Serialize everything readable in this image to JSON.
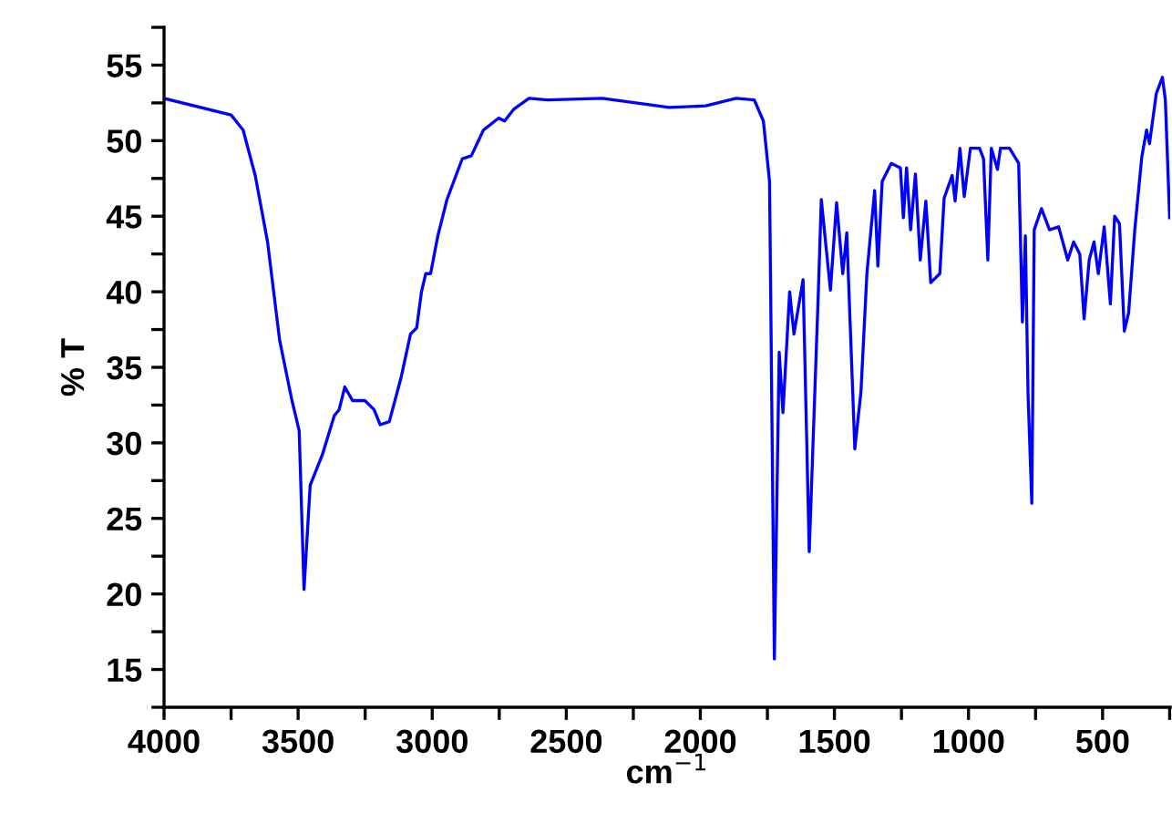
{
  "chart_data": {
    "type": "line",
    "xlabel": "cm$^{−1}$",
    "ylabel": "% T",
    "xlim": [
      4000,
      248
    ],
    "ylim": [
      12.5,
      57.5
    ],
    "xticks": [
      4000,
      {
        "value": 3750,
        "label": null
      },
      3500,
      {
        "value": 3250,
        "label": null
      },
      3000,
      {
        "value": 2750,
        "label": null
      },
      2500,
      {
        "value": 2250,
        "label": null
      },
      2000,
      {
        "value": 1750,
        "label": null
      },
      1500,
      {
        "value": 1250,
        "label": null
      },
      1000,
      {
        "value": 750,
        "label": null
      },
      500,
      {
        "value": 250,
        "label": null
      }
    ],
    "yticks": [
      {
        "value": 12.5,
        "label": null
      },
      15,
      {
        "value": 17.5,
        "label": null
      },
      20,
      {
        "value": 22.5,
        "label": null
      },
      25,
      {
        "value": 27.5,
        "label": null
      },
      30,
      {
        "value": 32.5,
        "label": null
      },
      35,
      {
        "value": 37.5,
        "label": null
      },
      40,
      {
        "value": 42.5,
        "label": null
      },
      45,
      {
        "value": 47.5,
        "label": null
      },
      50,
      {
        "value": 52.5,
        "label": null
      },
      55,
      {
        "value": 57.5,
        "label": null
      }
    ],
    "grid": false,
    "legend": false,
    "marker": "none",
    "line_style": "solid",
    "series": [
      {
        "color": "#0000ff",
        "x": [
          4000,
          3750,
          3705,
          3660,
          3614,
          3569,
          3523,
          3496,
          3478,
          3455,
          3410,
          3365,
          3347,
          3326,
          3297,
          3251,
          3217,
          3194,
          3160,
          3115,
          3081,
          3058,
          3040,
          3024,
          3006,
          2979,
          2945,
          2888,
          2854,
          2809,
          2752,
          2730,
          2695,
          2639,
          2570,
          2366,
          2116,
          1980,
          1867,
          1799,
          1765,
          1742,
          1724,
          1706,
          1692,
          1667,
          1651,
          1617,
          1594,
          1560,
          1549,
          1515,
          1492,
          1469,
          1454,
          1424,
          1401,
          1379,
          1350,
          1338,
          1322,
          1288,
          1254,
          1243,
          1231,
          1216,
          1198,
          1180,
          1159,
          1141,
          1107,
          1091,
          1061,
          1050,
          1032,
          1016,
          993,
          959,
          944,
          928,
          915,
          892,
          881,
          847,
          813,
          799,
          788,
          778,
          764,
          755,
          728,
          698,
          664,
          630,
          608,
          585,
          569,
          550,
          532,
          516,
          494,
          471,
          455,
          437,
          419,
          403,
          380,
          354,
          336,
          325,
          300,
          277,
          266,
          250
        ],
        "values": [
          52.8,
          51.7,
          50.7,
          47.7,
          43.3,
          36.8,
          32.8,
          30.8,
          20.3,
          27.2,
          29.2,
          31.8,
          32.2,
          33.7,
          32.8,
          32.8,
          32.2,
          31.2,
          31.4,
          34.4,
          37.2,
          37.6,
          40.0,
          41.2,
          41.2,
          43.7,
          46.1,
          48.8,
          49.0,
          50.7,
          51.5,
          51.3,
          52.1,
          52.8,
          52.7,
          52.8,
          52.2,
          52.3,
          52.8,
          52.7,
          51.3,
          47.3,
          15.7,
          36.0,
          32.0,
          40.0,
          37.2,
          40.8,
          22.8,
          40.0,
          46.1,
          40.1,
          45.9,
          41.2,
          43.9,
          29.6,
          33.4,
          41.2,
          46.7,
          41.7,
          47.3,
          48.5,
          48.2,
          44.9,
          48.2,
          44.1,
          47.8,
          42.1,
          46.0,
          40.6,
          41.2,
          46.2,
          47.7,
          46.0,
          49.5,
          46.3,
          49.5,
          49.5,
          48.8,
          42.1,
          49.5,
          48.1,
          49.5,
          49.5,
          48.5,
          38.0,
          43.7,
          33.2,
          26.0,
          44.1,
          45.5,
          44.1,
          44.3,
          42.1,
          43.3,
          42.5,
          38.2,
          42.1,
          43.3,
          41.2,
          44.3,
          39.2,
          45.0,
          44.5,
          37.4,
          38.6,
          44.1,
          48.9,
          50.7,
          49.8,
          53.1,
          54.2,
          52.7,
          44.9
        ]
      }
    ]
  }
}
